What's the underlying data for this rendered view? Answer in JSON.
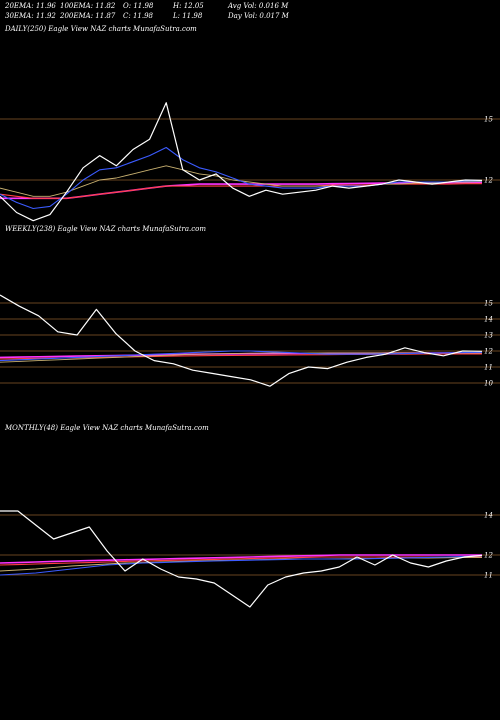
{
  "header": {
    "row1": [
      "20EMA: 11.96",
      "100EMA: 11.82",
      "O: 11.98",
      "H: 12.05",
      "Avg Vol: 0.016  M"
    ],
    "row2": [
      "30EMA: 11.92",
      "200EMA: 11.87",
      "C: 11.98",
      "L: 11.98",
      "Day Vol: 0.017 M"
    ]
  },
  "colors": {
    "background": "#000000",
    "price": "#ffffff",
    "ema_blue": "#3b5bff",
    "ema_pink": "#ff33ff",
    "ema_red": "#ff4040",
    "ema_khaki": "#c8b070",
    "level_line": "#8b5a2b"
  },
  "chart_data": [
    {
      "type": "line",
      "label": "DAILY(250) Eagle  View  NAZ charts MunafaSutra.com",
      "yticks": [
        "15",
        "12"
      ],
      "levels": [
        15,
        12
      ],
      "series": [
        {
          "values": [
            11.2,
            10.4,
            10.0,
            10.3,
            11.4,
            12.6,
            13.2,
            12.7,
            13.5,
            14.0,
            15.8,
            12.5,
            12.0,
            12.3,
            11.6,
            11.2,
            11.5,
            11.3,
            11.4,
            11.5,
            11.7,
            11.6,
            11.7,
            11.8,
            12.0,
            11.9,
            11.8,
            11.9,
            12.0,
            11.98
          ]
        },
        {
          "values": [
            11.3,
            10.9,
            10.6,
            10.7,
            11.3,
            12.0,
            12.5,
            12.6,
            12.9,
            13.2,
            13.6,
            13.0,
            12.6,
            12.4,
            12.1,
            11.8,
            11.7,
            11.6,
            11.6,
            11.6,
            11.7,
            11.7,
            11.7,
            11.8,
            11.9,
            11.9,
            11.9,
            11.9,
            11.95,
            11.96
          ]
        },
        {
          "values": [
            11.6,
            11.4,
            11.2,
            11.2,
            11.4,
            11.7,
            12.0,
            12.1,
            12.3,
            12.5,
            12.7,
            12.5,
            12.3,
            12.2,
            12.0,
            11.9,
            11.8,
            11.7,
            11.7,
            11.7,
            11.7,
            11.7,
            11.7,
            11.8,
            11.8,
            11.85,
            11.85,
            11.9,
            11.9,
            11.92
          ]
        },
        {
          "values": [
            11.3,
            11.2,
            11.1,
            11.1,
            11.1,
            11.2,
            11.3,
            11.4,
            11.5,
            11.6,
            11.7,
            11.7,
            11.7,
            11.7,
            11.7,
            11.7,
            11.7,
            11.7,
            11.7,
            11.7,
            11.75,
            11.75,
            11.75,
            11.8,
            11.8,
            11.8,
            11.8,
            11.8,
            11.82,
            11.82
          ]
        },
        {
          "values": [
            11.1,
            11.1,
            11.1,
            11.1,
            11.1,
            11.2,
            11.3,
            11.4,
            11.5,
            11.6,
            11.7,
            11.75,
            11.8,
            11.8,
            11.8,
            11.8,
            11.8,
            11.8,
            11.8,
            11.8,
            11.82,
            11.83,
            11.84,
            11.85,
            11.85,
            11.86,
            11.86,
            11.87,
            11.87,
            11.87
          ]
        }
      ]
    },
    {
      "type": "line",
      "label": "WEEKLY(238) Eagle  View  NAZ charts MunafaSutra.com",
      "yticks": [
        "15",
        "14",
        "13",
        "12",
        "11",
        "10"
      ],
      "levels": [
        15,
        14,
        13,
        12,
        11,
        10
      ],
      "series": [
        {
          "values": [
            15.5,
            14.8,
            14.2,
            13.2,
            13.0,
            14.6,
            13.1,
            12.0,
            11.4,
            11.2,
            10.8,
            10.6,
            10.4,
            10.2,
            9.8,
            10.6,
            11.0,
            10.9,
            11.3,
            11.6,
            11.8,
            12.2,
            11.9,
            11.7,
            12.0,
            11.98
          ]
        },
        {
          "values": [
            11.4,
            11.45,
            11.5,
            11.55,
            11.6,
            11.65,
            11.7,
            11.75,
            11.8,
            11.85,
            11.9,
            11.95,
            12.0,
            12.0,
            11.95,
            11.9,
            11.85,
            11.8,
            11.8,
            11.8,
            11.82,
            11.84,
            11.86,
            11.88,
            11.9,
            11.92
          ]
        },
        {
          "values": [
            11.3,
            11.35,
            11.4,
            11.45,
            11.5,
            11.55,
            11.6,
            11.65,
            11.7,
            11.75,
            11.8,
            11.82,
            11.84,
            11.86,
            11.87,
            11.88,
            11.88,
            11.88,
            11.88,
            11.88,
            11.88,
            11.88,
            11.88,
            11.88,
            11.88,
            11.88
          ]
        },
        {
          "values": [
            11.5,
            11.52,
            11.54,
            11.56,
            11.58,
            11.6,
            11.62,
            11.64,
            11.66,
            11.68,
            11.7,
            11.71,
            11.72,
            11.73,
            11.74,
            11.75,
            11.76,
            11.77,
            11.78,
            11.79,
            11.8,
            11.8,
            11.81,
            11.81,
            11.82,
            11.82
          ]
        },
        {
          "values": [
            11.6,
            11.62,
            11.64,
            11.66,
            11.68,
            11.7,
            11.72,
            11.74,
            11.76,
            11.78,
            11.8,
            11.81,
            11.82,
            11.83,
            11.84,
            11.85,
            11.85,
            11.86,
            11.86,
            11.86,
            11.87,
            11.87,
            11.87,
            11.87,
            11.87,
            11.87
          ]
        }
      ]
    },
    {
      "type": "line",
      "label": "MONTHLY(48) Eagle  View  NAZ charts MunafaSutra.com",
      "yticks": [
        "14",
        "12",
        "11"
      ],
      "levels": [
        14,
        12,
        11
      ],
      "series": [
        {
          "values": [
            14.2,
            14.2,
            13.5,
            12.8,
            13.1,
            13.4,
            12.2,
            11.2,
            11.8,
            11.3,
            10.9,
            10.8,
            10.6,
            10.0,
            9.4,
            10.5,
            10.9,
            11.1,
            11.2,
            11.4,
            11.9,
            11.5,
            12.0,
            11.6,
            11.4,
            11.7,
            11.9,
            11.98
          ]
        },
        {
          "values": [
            11.0,
            11.05,
            11.1,
            11.2,
            11.3,
            11.4,
            11.5,
            11.55,
            11.6,
            11.62,
            11.65,
            11.68,
            11.7,
            11.72,
            11.74,
            11.76,
            11.78,
            11.8,
            11.8,
            11.8,
            11.8,
            11.82,
            11.84,
            11.86,
            11.88,
            11.9,
            11.92,
            11.96
          ]
        },
        {
          "values": [
            11.2,
            11.25,
            11.3,
            11.38,
            11.45,
            11.5,
            11.55,
            11.6,
            11.62,
            11.65,
            11.68,
            11.7,
            11.72,
            11.74,
            11.76,
            11.78,
            11.8,
            11.8,
            11.8,
            11.81,
            11.82,
            11.83,
            11.84,
            11.85,
            11.85,
            11.86,
            11.87,
            11.87
          ]
        },
        {
          "values": [
            11.5,
            11.52,
            11.55,
            11.58,
            11.6,
            11.62,
            11.65,
            11.68,
            11.7,
            11.72,
            11.74,
            11.76,
            11.78,
            11.8,
            11.82,
            11.84,
            11.86,
            11.88,
            11.9,
            11.9,
            11.9,
            11.9,
            11.9,
            11.9,
            11.9,
            11.9,
            11.9,
            11.9
          ]
        },
        {
          "values": [
            11.6,
            11.62,
            11.65,
            11.68,
            11.7,
            11.72,
            11.74,
            11.76,
            11.78,
            11.8,
            11.82,
            11.84,
            11.86,
            11.88,
            11.9,
            11.92,
            11.94,
            11.96,
            11.98,
            12.0,
            12.0,
            12.0,
            12.0,
            12.0,
            12.0,
            12.0,
            12.0,
            12.0
          ]
        }
      ]
    }
  ]
}
